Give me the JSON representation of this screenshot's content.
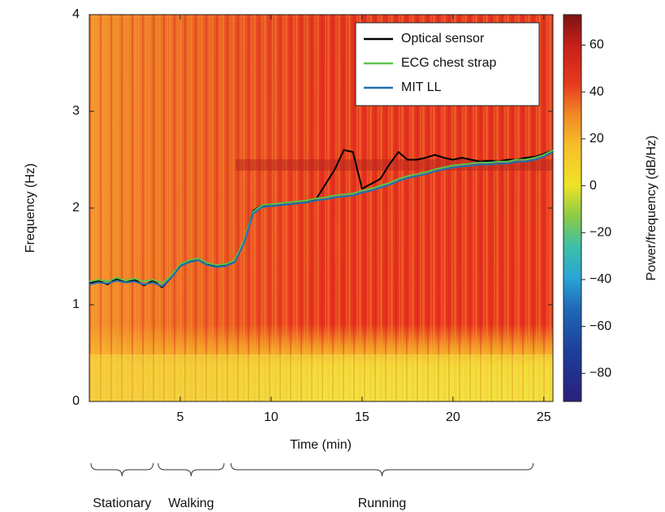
{
  "chart_data": {
    "type": "line",
    "xlabel": "Time (min)",
    "ylabel": "Frequency (Hz)",
    "xlim": [
      0,
      25.5
    ],
    "ylim": [
      0,
      4
    ],
    "xticks": [
      5,
      10,
      15,
      20,
      25
    ],
    "yticks": [
      0,
      1,
      2,
      3,
      4
    ],
    "x": [
      0,
      0.5,
      1,
      1.5,
      2,
      2.5,
      3,
      3.5,
      4,
      4.5,
      5,
      5.5,
      6,
      6.5,
      7,
      7.5,
      8,
      8.5,
      9,
      9.5,
      10,
      10.5,
      11,
      11.5,
      12,
      12.5,
      13,
      13.5,
      14,
      14.5,
      15,
      15.5,
      16,
      16.5,
      17,
      17.5,
      18,
      18.5,
      19,
      19.5,
      20,
      20.5,
      21,
      21.5,
      22,
      22.5,
      23,
      23.5,
      24,
      24.5,
      25,
      25.5
    ],
    "series": [
      {
        "name": "Optical sensor",
        "color": "#000000",
        "values": [
          1.22,
          1.25,
          1.21,
          1.27,
          1.23,
          1.26,
          1.2,
          1.25,
          1.18,
          1.28,
          1.4,
          1.45,
          1.48,
          1.42,
          1.4,
          1.41,
          1.45,
          1.65,
          1.97,
          2.03,
          2.02,
          2.03,
          2.04,
          2.05,
          2.06,
          2.1,
          2.25,
          2.4,
          2.6,
          2.58,
          2.2,
          2.25,
          2.3,
          2.45,
          2.58,
          2.5,
          2.5,
          2.52,
          2.55,
          2.52,
          2.5,
          2.52,
          2.5,
          2.48,
          2.49,
          2.48,
          2.5,
          2.5,
          2.52,
          2.53,
          2.56,
          2.6
        ]
      },
      {
        "name": "ECG chest strap",
        "color": "#5cc24a",
        "values": [
          1.24,
          1.26,
          1.24,
          1.28,
          1.25,
          1.27,
          1.24,
          1.26,
          1.22,
          1.3,
          1.42,
          1.46,
          1.48,
          1.43,
          1.41,
          1.42,
          1.46,
          1.66,
          1.96,
          2.03,
          2.04,
          2.05,
          2.06,
          2.07,
          2.08,
          2.1,
          2.11,
          2.13,
          2.14,
          2.15,
          2.18,
          2.2,
          2.23,
          2.26,
          2.3,
          2.33,
          2.35,
          2.37,
          2.4,
          2.42,
          2.44,
          2.45,
          2.46,
          2.47,
          2.47,
          2.48,
          2.48,
          2.5,
          2.5,
          2.52,
          2.55,
          2.6
        ]
      },
      {
        "name": "MIT LL",
        "color": "#1f6fb4",
        "values": [
          1.21,
          1.23,
          1.22,
          1.25,
          1.23,
          1.24,
          1.21,
          1.23,
          1.19,
          1.28,
          1.4,
          1.44,
          1.46,
          1.41,
          1.39,
          1.4,
          1.44,
          1.63,
          1.94,
          2.01,
          2.02,
          2.03,
          2.04,
          2.05,
          2.06,
          2.08,
          2.09,
          2.11,
          2.12,
          2.13,
          2.16,
          2.18,
          2.21,
          2.24,
          2.28,
          2.31,
          2.33,
          2.35,
          2.38,
          2.4,
          2.42,
          2.43,
          2.44,
          2.45,
          2.45,
          2.46,
          2.46,
          2.48,
          2.48,
          2.5,
          2.53,
          2.58
        ]
      }
    ],
    "legend": "upper right",
    "colorbar": {
      "label": "Power/frequency (dB/Hz)",
      "lim": [
        -92,
        73
      ],
      "ticks": [
        {
          "value": -80,
          "label": "−80"
        },
        {
          "value": -60,
          "label": "−60"
        },
        {
          "value": -40,
          "label": "−40"
        },
        {
          "value": -20,
          "label": "−20"
        },
        0,
        20,
        40,
        60
      ]
    },
    "segments": [
      {
        "label": "Stationary",
        "start": 0,
        "end": 3.6
      },
      {
        "label": "Walking",
        "start": 3.7,
        "end": 7.5
      },
      {
        "label": "Running",
        "start": 7.7,
        "end": 24.5
      }
    ]
  }
}
